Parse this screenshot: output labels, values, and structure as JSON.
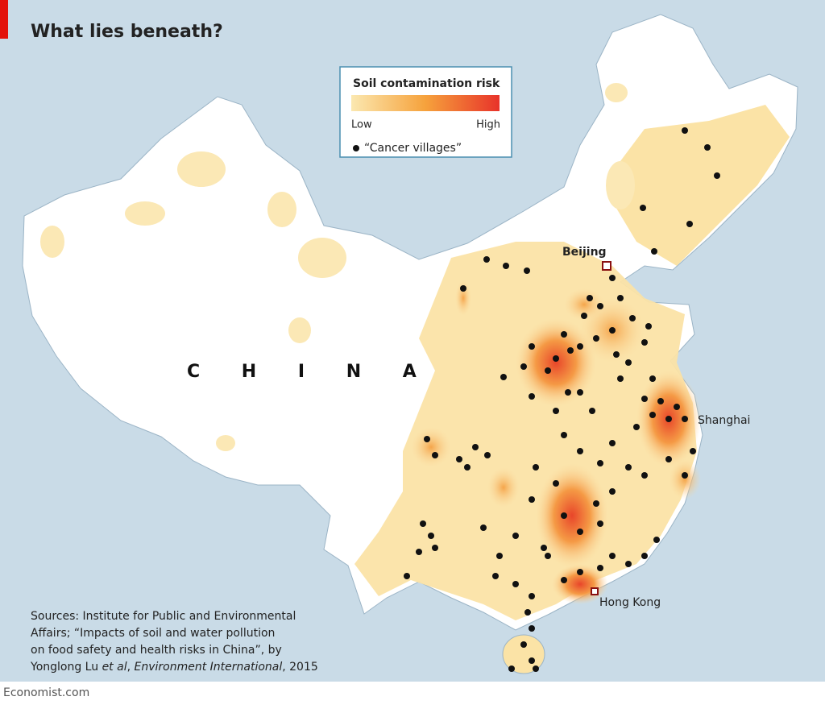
{
  "header": {
    "title": "What lies beneath?"
  },
  "legend": {
    "title": "Soil contamination risk",
    "low": "Low",
    "high": "High",
    "dots": "“Cancer villages”"
  },
  "labels": {
    "country": "C H I N A",
    "beijing": "Beijing",
    "shanghai": "Shanghai",
    "hong_kong": "Hong Kong"
  },
  "sources": {
    "lines": [
      "Sources: Institute for Public and Environmental",
      "Affairs; “Impacts of soil and water pollution",
      "on food safety and health risks in China”, by"
    ],
    "last_line": [
      "Yonglong Lu ",
      "et al",
      ", ",
      "Environment International",
      ", 2015"
    ]
  },
  "footer": {
    "brand": "Economist.com"
  }
}
